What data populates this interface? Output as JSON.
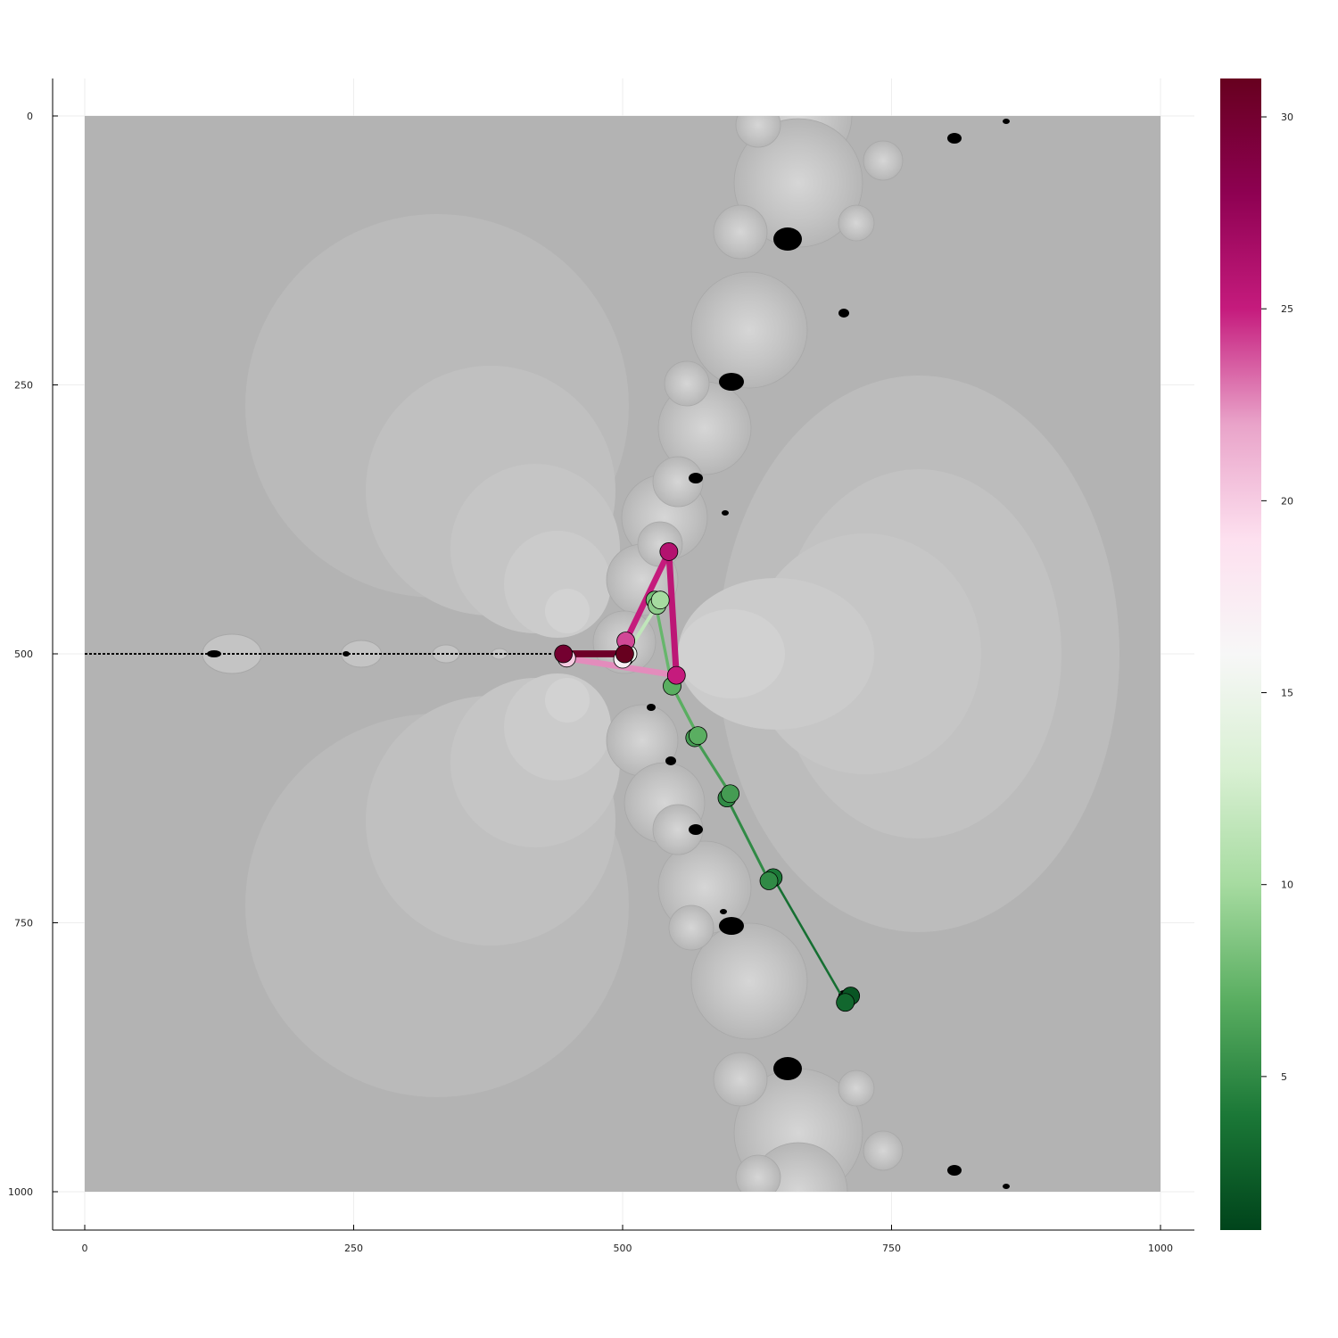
{
  "chart_data": {
    "type": "scatter",
    "title": "",
    "xlabel": "",
    "ylabel": "",
    "xlim": [
      -30,
      1030
    ],
    "ylim": [
      1035,
      -35
    ],
    "y_axis_inverted": true,
    "grid": true,
    "legend": "none",
    "x_ticks": [
      "0",
      "250",
      "500",
      "750",
      "1000"
    ],
    "y_ticks": [
      "0",
      "250",
      "500",
      "750",
      "1000"
    ],
    "x_tick_values": [
      0,
      250,
      500,
      750,
      1000
    ],
    "y_tick_values": [
      0,
      250,
      500,
      750,
      1000
    ],
    "background": {
      "type": "heatmap",
      "colormap": "grays",
      "extent": [
        0,
        1000,
        0,
        1000
      ],
      "description": "fractal basin image"
    },
    "colorbar": {
      "colormap": "PiYG",
      "range": [
        1,
        31
      ],
      "ticks": [
        "5",
        "10",
        "15",
        "20",
        "25",
        "30"
      ],
      "tick_values": [
        5,
        10,
        15,
        20,
        25,
        30
      ],
      "colors": [
        "#00441b",
        "#1b7837",
        "#5aae61",
        "#a6dba0",
        "#d9f0d3",
        "#f7f7f7",
        "#fde0ef",
        "#e9a3c9",
        "#c51b7d",
        "#8e0152",
        "#67001f"
      ]
    },
    "trajectory": {
      "points": [
        {
          "x": 708,
          "y": 822,
          "c": 1
        },
        {
          "x": 712,
          "y": 818,
          "c": 2
        },
        {
          "x": 707,
          "y": 824,
          "c": 3
        },
        {
          "x": 640,
          "y": 708,
          "c": 4
        },
        {
          "x": 636,
          "y": 711,
          "c": 5
        },
        {
          "x": 597,
          "y": 634,
          "c": 5
        },
        {
          "x": 600,
          "y": 630,
          "c": 6
        },
        {
          "x": 567,
          "y": 578,
          "c": 6
        },
        {
          "x": 570,
          "y": 576,
          "c": 7
        },
        {
          "x": 546,
          "y": 530,
          "c": 7
        },
        {
          "x": 530,
          "y": 450,
          "c": 8
        },
        {
          "x": 532,
          "y": 455,
          "c": 9
        },
        {
          "x": 535,
          "y": 450,
          "c": 10
        },
        {
          "x": 502,
          "y": 503,
          "c": 13
        },
        {
          "x": 505,
          "y": 500,
          "c": 15
        },
        {
          "x": 500,
          "y": 505,
          "c": 17
        },
        {
          "x": 503,
          "y": 488,
          "c": 24
        },
        {
          "x": 543,
          "y": 405,
          "c": 26
        },
        {
          "x": 550,
          "y": 520,
          "c": 25
        },
        {
          "x": 448,
          "y": 504,
          "c": 20
        },
        {
          "x": 445,
          "y": 500,
          "c": 30
        },
        {
          "x": 502,
          "y": 500,
          "c": 31
        }
      ]
    }
  }
}
